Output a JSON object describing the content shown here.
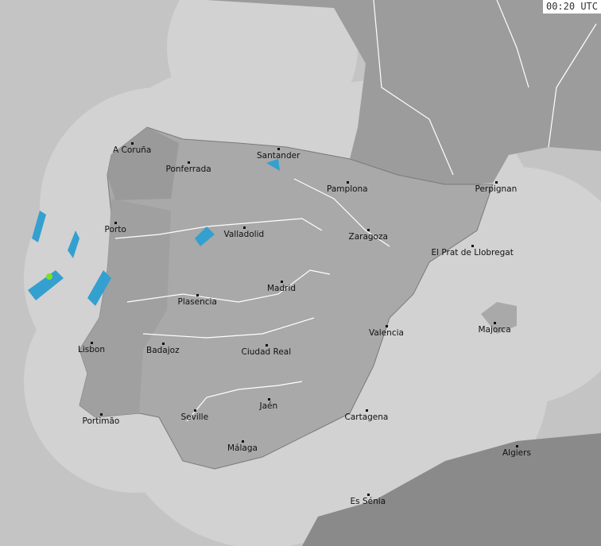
{
  "timestamp": "00:20 UTC",
  "colors": {
    "sea": "#c4c4c4",
    "coverage": "#d2d2d2",
    "iberia_land": "#a9a9a9",
    "other_land": "#9c9c9c",
    "borders": "#7a7a7a",
    "rivers": "#ffffff",
    "radar_light": "#33a0d0",
    "radar_heavy": "#80e020"
  },
  "cities": [
    {
      "name": "A Coruña"
    },
    {
      "name": "Santander"
    },
    {
      "name": "Ponferrada"
    },
    {
      "name": "Pamplona"
    },
    {
      "name": "Perpignan"
    },
    {
      "name": "Valladolid"
    },
    {
      "name": "Porto"
    },
    {
      "name": "Zaragoza"
    },
    {
      "name": "El Prat de Llobregat"
    },
    {
      "name": "Madrid"
    },
    {
      "name": "Plasencia"
    },
    {
      "name": "Majorca"
    },
    {
      "name": "Valencia"
    },
    {
      "name": "Lisbon"
    },
    {
      "name": "Badajoz"
    },
    {
      "name": "Ciudad Real"
    },
    {
      "name": "Jaén"
    },
    {
      "name": "Portimão"
    },
    {
      "name": "Seville"
    },
    {
      "name": "Cartagena"
    },
    {
      "name": "Algiers"
    },
    {
      "name": "Málaga"
    },
    {
      "name": "Es Sénia"
    }
  ]
}
